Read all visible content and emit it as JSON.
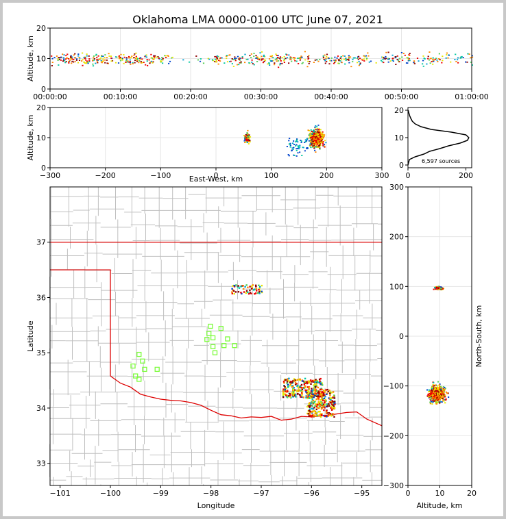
{
  "title": "Oklahoma LMA 0000-0100 UTC June 07, 2021",
  "colors": {
    "state_border": "#dd0000",
    "county_lines": "#bfbfbf",
    "station_marker": "#7cfc3c",
    "source_colormap": [
      "#0044cc",
      "#00a0d0",
      "#00c8a0",
      "#55d055",
      "#e6e600",
      "#ff8800",
      "#ee0000",
      "#8a0000"
    ]
  },
  "chart_data": [
    {
      "id": "time_altitude",
      "type": "scatter",
      "xlabel": "",
      "ylabel": "Altitude, km",
      "x_ticks": [
        "00:00:00",
        "00:10:00",
        "00:20:00",
        "00:30:00",
        "00:40:00",
        "00:50:00",
        "01:00:00"
      ],
      "xlim_minutes": [
        0,
        60
      ],
      "ylim": [
        0,
        20
      ],
      "y_ticks": [
        0,
        10,
        20
      ],
      "grid": true,
      "source_altitude_band_km": [
        3,
        16
      ]
    },
    {
      "id": "eastwest_altitude",
      "type": "scatter",
      "xlabel": "East-West, km",
      "ylabel": "Altitude, km",
      "xlim": [
        -300,
        300
      ],
      "x_ticks": [
        -300,
        -200,
        -100,
        0,
        100,
        200,
        300
      ],
      "ylim": [
        0,
        20
      ],
      "y_ticks": [
        0,
        10,
        20
      ],
      "grid": true,
      "clusters": [
        {
          "x": [
            40,
            80
          ],
          "y": [
            6,
            14
          ]
        },
        {
          "x": [
            120,
            215
          ],
          "y": [
            3,
            19
          ]
        }
      ]
    },
    {
      "id": "altitude_histogram",
      "type": "line",
      "xlim": [
        0,
        220
      ],
      "x_ticks": [
        0,
        200
      ],
      "ylim": [
        -1,
        21
      ],
      "y_ticks": [
        0,
        10,
        20
      ],
      "annotation": "6,597 sources",
      "profile_alt_km": [
        0,
        2,
        3,
        4,
        5,
        6,
        7,
        8,
        9,
        10,
        11,
        12,
        13,
        14,
        15,
        16,
        17,
        18,
        19,
        20
      ],
      "profile_counts": [
        0,
        5,
        25,
        55,
        75,
        110,
        140,
        180,
        205,
        210,
        200,
        150,
        80,
        45,
        25,
        15,
        10,
        6,
        3,
        1
      ]
    },
    {
      "id": "plan_view",
      "type": "scatter",
      "xlabel": "Longitude",
      "ylabel": "Latitude",
      "xlim": [
        -101.2,
        -94.6
      ],
      "ylim": [
        32.6,
        38.0
      ],
      "x_ticks": [
        -101,
        -100,
        -99,
        -98,
        -97,
        -96,
        -95
      ],
      "y_ticks": [
        33,
        34,
        35,
        36,
        37
      ],
      "stations": [
        {
          "lon": -98.01,
          "lat": 35.48
        },
        {
          "lon": -97.8,
          "lat": 35.44
        },
        {
          "lon": -98.04,
          "lat": 35.35
        },
        {
          "lon": -97.96,
          "lat": 35.27
        },
        {
          "lon": -98.08,
          "lat": 35.24
        },
        {
          "lon": -97.67,
          "lat": 35.25
        },
        {
          "lon": -97.74,
          "lat": 35.13
        },
        {
          "lon": -97.53,
          "lat": 35.13
        },
        {
          "lon": -97.96,
          "lat": 35.11
        },
        {
          "lon": -97.92,
          "lat": 35.0
        },
        {
          "lon": -99.43,
          "lat": 34.97
        },
        {
          "lon": -99.36,
          "lat": 34.85
        },
        {
          "lon": -99.55,
          "lat": 34.76
        },
        {
          "lon": -99.32,
          "lat": 34.7
        },
        {
          "lon": -99.07,
          "lat": 34.7
        },
        {
          "lon": -99.5,
          "lat": 34.58
        },
        {
          "lon": -99.43,
          "lat": 34.52
        }
      ],
      "source_regions": [
        {
          "lon": [
            -97.6,
            -97.0
          ],
          "lat": [
            36.08,
            36.24
          ]
        },
        {
          "lon": [
            -96.6,
            -95.8
          ],
          "lat": [
            34.2,
            34.55
          ]
        },
        {
          "lon": [
            -96.1,
            -95.55
          ],
          "lat": [
            33.85,
            34.35
          ]
        }
      ]
    },
    {
      "id": "altitude_northsouth",
      "type": "scatter",
      "xlabel": "Altitude, km",
      "ylabel": "North-South, km",
      "xlim": [
        0,
        20
      ],
      "x_ticks": [
        0,
        10,
        20
      ],
      "ylim": [
        -300,
        300
      ],
      "y_ticks": [
        -300,
        -200,
        -100,
        0,
        100,
        200,
        300
      ],
      "grid": true,
      "clusters": [
        {
          "x": [
            5,
            14
          ],
          "y": [
            88,
            105
          ]
        },
        {
          "x": [
            3,
            18
          ],
          "y": [
            -155,
            -80
          ]
        }
      ]
    }
  ]
}
